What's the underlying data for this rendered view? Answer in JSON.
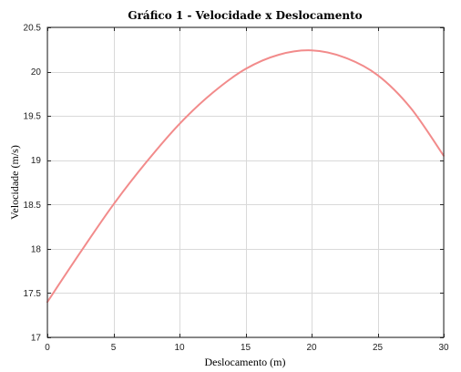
{
  "chart_data": {
    "type": "line",
    "title": "Gráfico 1 - Velocidade x Deslocamento",
    "xlabel": "Deslocamento (m)",
    "ylabel": "Velocidade (m/s)",
    "xlim": [
      0,
      30
    ],
    "ylim": [
      17,
      20.5
    ],
    "xticks": [
      0,
      5,
      10,
      15,
      20,
      25,
      30
    ],
    "xtick_labels": [
      "0",
      "5",
      "10",
      "15",
      "20",
      "25",
      "30"
    ],
    "yticks": [
      17,
      17.5,
      18,
      18.5,
      19,
      19.5,
      20,
      20.5
    ],
    "ytick_labels": [
      "17",
      "17.5",
      "18",
      "18.5",
      "19",
      "19.5",
      "20",
      "20.5"
    ],
    "grid": true,
    "legend": false,
    "series": [
      {
        "color": "#f28b8b",
        "x": [
          0,
          2.5,
          5,
          7.5,
          10,
          12.5,
          15,
          17.5,
          20,
          22.5,
          25,
          27.5,
          30
        ],
        "y": [
          17.4,
          17.96,
          18.5,
          18.98,
          19.41,
          19.76,
          20.03,
          20.19,
          20.24,
          20.16,
          19.96,
          19.59,
          19.05
        ]
      }
    ]
  }
}
